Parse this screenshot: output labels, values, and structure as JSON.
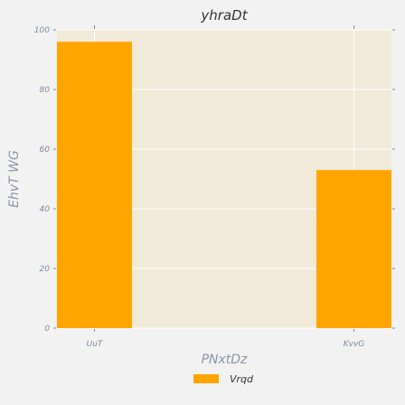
{
  "chart_data": {
    "type": "bar",
    "title": "yhraDt",
    "xlabel": "PNxtDz",
    "ylabel": "EhvT WG",
    "categories": [
      "UuT",
      "KvvG"
    ],
    "series": [
      {
        "name": "Vrqd",
        "values": [
          96,
          53
        ]
      }
    ],
    "ylim": [
      0,
      100
    ],
    "yticks": [
      0,
      20,
      40,
      60,
      80,
      100
    ],
    "grid": true,
    "legend_position": "bottom-center",
    "colors": {
      "bar": "#ffa500",
      "plot_background": "#f2ead8",
      "page_background": "#f2f2f2",
      "grid": "#ffffff"
    }
  }
}
